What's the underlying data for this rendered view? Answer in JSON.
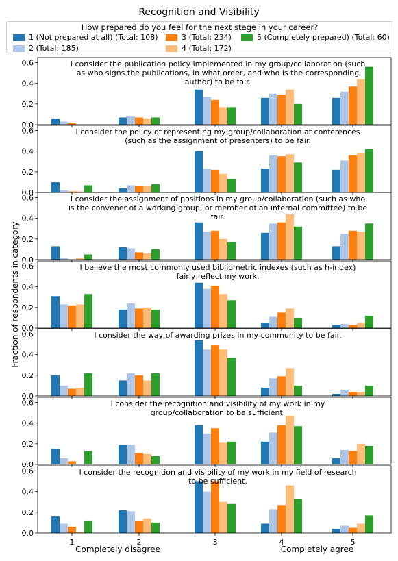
{
  "title": "Recognition and Visibility",
  "legend": {
    "title": "How prepared do you feel for the next stage in your career?",
    "items": [
      {
        "label": "1 (Not prepared at all) (Total: 108)",
        "color": "#1f77b4"
      },
      {
        "label": "2 (Total: 185)",
        "color": "#aec7e8"
      },
      {
        "label": "3 (Total: 234)",
        "color": "#ff7f0e"
      },
      {
        "label": "4 (Total: 172)",
        "color": "#ffbb78"
      },
      {
        "label": "5 (Completely prepared) (Total: 60)",
        "color": "#2ca02c"
      }
    ]
  },
  "ylabel": "Fraction of respondents in category",
  "x_bottom_labels": {
    "left": "Completely disagree",
    "right": "Completely agree"
  },
  "chart_data": [
    {
      "type": "bar",
      "title": "I consider the publication policy implemented in my group/collaboration (such as who signs the publications, in what order, and who is the corresponding author) to be fair.",
      "title_lines": [
        "I consider the publication policy implemented in my group/collaboration (such",
        "as who signs the publications, in what order, and who is the corresponding",
        "author) to be fair."
      ],
      "categories": [
        "1",
        "2",
        "3",
        "4",
        "5"
      ],
      "ylim": [
        0,
        0.65
      ],
      "yticks": [
        0.0,
        0.2,
        0.4,
        0.6
      ],
      "series": [
        {
          "name": "1 (Not prepared at all) (Total: 108)",
          "values": [
            0.06,
            0.07,
            0.34,
            0.26,
            0.26
          ]
        },
        {
          "name": "2 (Total: 185)",
          "values": [
            0.03,
            0.08,
            0.27,
            0.3,
            0.32
          ]
        },
        {
          "name": "3 (Total: 234)",
          "values": [
            0.02,
            0.07,
            0.24,
            0.29,
            0.37
          ]
        },
        {
          "name": "4 (Total: 172)",
          "values": [
            0.0,
            0.06,
            0.17,
            0.34,
            0.44
          ]
        },
        {
          "name": "5 (Completely prepared) (Total: 60)",
          "values": [
            0.0,
            0.07,
            0.17,
            0.2,
            0.56
          ]
        }
      ]
    },
    {
      "type": "bar",
      "title": "I consider the policy of representing my group/collaboration at conferences (such as the assignment of presenters) to be fair.",
      "title_lines": [
        "I consider the policy of representing my group/collaboration at conferences",
        "(such as the assignment of presenters) to be fair."
      ],
      "categories": [
        "1",
        "2",
        "3",
        "4",
        "5"
      ],
      "ylim": [
        0,
        0.65
      ],
      "yticks": [
        0.0,
        0.2,
        0.4,
        0.6
      ],
      "series": [
        {
          "name": "1 (Not prepared at all) (Total: 108)",
          "values": [
            0.1,
            0.04,
            0.4,
            0.23,
            0.22
          ]
        },
        {
          "name": "2 (Total: 185)",
          "values": [
            0.02,
            0.07,
            0.23,
            0.36,
            0.31
          ]
        },
        {
          "name": "3 (Total: 234)",
          "values": [
            0.01,
            0.06,
            0.22,
            0.35,
            0.36
          ]
        },
        {
          "name": "4 (Total: 172)",
          "values": [
            0.01,
            0.06,
            0.18,
            0.37,
            0.38
          ]
        },
        {
          "name": "5 (Completely prepared) (Total: 60)",
          "values": [
            0.07,
            0.08,
            0.13,
            0.29,
            0.42
          ]
        }
      ]
    },
    {
      "type": "bar",
      "title": "I consider the assignment of positions in my group/collaboration (such as who is the convener of a working group, or member of an internal committee) to be fair.",
      "title_lines": [
        "I consider the assignment of positions in my group/collaboration (such as who",
        "is the convener of a working group, or member of an internal committee) to be",
        "fair."
      ],
      "categories": [
        "1",
        "2",
        "3",
        "4",
        "5"
      ],
      "ylim": [
        0,
        0.65
      ],
      "yticks": [
        0.0,
        0.2,
        0.4,
        0.6
      ],
      "series": [
        {
          "name": "1 (Not prepared at all) (Total: 108)",
          "values": [
            0.13,
            0.12,
            0.36,
            0.26,
            0.13
          ]
        },
        {
          "name": "2 (Total: 185)",
          "values": [
            0.02,
            0.11,
            0.27,
            0.35,
            0.25
          ]
        },
        {
          "name": "3 (Total: 234)",
          "values": [
            0.0,
            0.07,
            0.28,
            0.36,
            0.28
          ]
        },
        {
          "name": "4 (Total: 172)",
          "values": [
            0.02,
            0.06,
            0.2,
            0.44,
            0.27
          ]
        },
        {
          "name": "5 (Completely prepared) (Total: 60)",
          "values": [
            0.05,
            0.1,
            0.17,
            0.32,
            0.35
          ]
        }
      ]
    },
    {
      "type": "bar",
      "title": "I believe the most commonly used bibliometric indexes (such as h-index) fairly reflect my work.",
      "title_lines": [
        "I believe the most commonly used bibliometric indexes (such as h-index)",
        "fairly reflect my work."
      ],
      "categories": [
        "1",
        "2",
        "3",
        "4",
        "5"
      ],
      "ylim": [
        0,
        0.65
      ],
      "yticks": [
        0.0,
        0.2,
        0.4,
        0.6
      ],
      "series": [
        {
          "name": "1 (Not prepared at all) (Total: 108)",
          "values": [
            0.31,
            0.18,
            0.44,
            0.05,
            0.03
          ]
        },
        {
          "name": "2 (Total: 185)",
          "values": [
            0.23,
            0.24,
            0.38,
            0.11,
            0.04
          ]
        },
        {
          "name": "3 (Total: 234)",
          "values": [
            0.22,
            0.19,
            0.41,
            0.15,
            0.03
          ]
        },
        {
          "name": "4 (Total: 172)",
          "values": [
            0.23,
            0.2,
            0.33,
            0.19,
            0.05
          ]
        },
        {
          "name": "5 (Completely prepared) (Total: 60)",
          "values": [
            0.33,
            0.18,
            0.27,
            0.1,
            0.12
          ]
        }
      ]
    },
    {
      "type": "bar",
      "title": "I consider the way of awarding prizes in my community to be fair.",
      "title_lines": [
        "I consider the way of awarding prizes in my community to be fair."
      ],
      "categories": [
        "1",
        "2",
        "3",
        "4",
        "5"
      ],
      "ylim": [
        0,
        0.65
      ],
      "yticks": [
        0.0,
        0.2,
        0.4,
        0.6
      ],
      "series": [
        {
          "name": "1 (Not prepared at all) (Total: 108)",
          "values": [
            0.2,
            0.15,
            0.54,
            0.08,
            0.02
          ]
        },
        {
          "name": "2 (Total: 185)",
          "values": [
            0.1,
            0.22,
            0.45,
            0.17,
            0.06
          ]
        },
        {
          "name": "3 (Total: 234)",
          "values": [
            0.07,
            0.2,
            0.49,
            0.19,
            0.04
          ]
        },
        {
          "name": "4 (Total: 172)",
          "values": [
            0.08,
            0.15,
            0.45,
            0.27,
            0.04
          ]
        },
        {
          "name": "5 (Completely prepared) (Total: 60)",
          "values": [
            0.22,
            0.22,
            0.37,
            0.1,
            0.1
          ]
        }
      ]
    },
    {
      "type": "bar",
      "title": "I consider the recognition and visibility of my work in my group/collaboration to be sufficient.",
      "title_lines": [
        "I consider the recognition and visibility of my work in my",
        "group/collaboration to be sufficient."
      ],
      "categories": [
        "1",
        "2",
        "3",
        "4",
        "5"
      ],
      "ylim": [
        0,
        0.65
      ],
      "yticks": [
        0.0,
        0.2,
        0.4,
        0.6
      ],
      "series": [
        {
          "name": "1 (Not prepared at all) (Total: 108)",
          "values": [
            0.15,
            0.19,
            0.38,
            0.22,
            0.06
          ]
        },
        {
          "name": "2 (Total: 185)",
          "values": [
            0.06,
            0.19,
            0.3,
            0.31,
            0.14
          ]
        },
        {
          "name": "3 (Total: 234)",
          "values": [
            0.03,
            0.11,
            0.35,
            0.38,
            0.13
          ]
        },
        {
          "name": "4 (Total: 172)",
          "values": [
            0.0,
            0.1,
            0.21,
            0.47,
            0.2
          ]
        },
        {
          "name": "5 (Completely prepared) (Total: 60)",
          "values": [
            0.13,
            0.08,
            0.22,
            0.37,
            0.18
          ]
        }
      ]
    },
    {
      "type": "bar",
      "title": "I consider the recognition and visibility of my work in my field of research to be sufficient.",
      "title_lines": [
        "I consider the recognition and visibility of my work in my field of research",
        "to be sufficient."
      ],
      "categories": [
        "1",
        "2",
        "3",
        "4",
        "5"
      ],
      "ylim": [
        0,
        0.65
      ],
      "yticks": [
        0.0,
        0.2,
        0.4,
        0.6
      ],
      "series": [
        {
          "name": "1 (Not prepared at all) (Total: 108)",
          "values": [
            0.16,
            0.22,
            0.5,
            0.09,
            0.04
          ]
        },
        {
          "name": "2 (Total: 185)",
          "values": [
            0.09,
            0.21,
            0.4,
            0.23,
            0.07
          ]
        },
        {
          "name": "3 (Total: 234)",
          "values": [
            0.06,
            0.12,
            0.5,
            0.27,
            0.05
          ]
        },
        {
          "name": "4 (Total: 172)",
          "values": [
            0.01,
            0.14,
            0.3,
            0.46,
            0.09
          ]
        },
        {
          "name": "5 (Completely prepared) (Total: 60)",
          "values": [
            0.12,
            0.1,
            0.28,
            0.33,
            0.17
          ]
        }
      ]
    }
  ]
}
